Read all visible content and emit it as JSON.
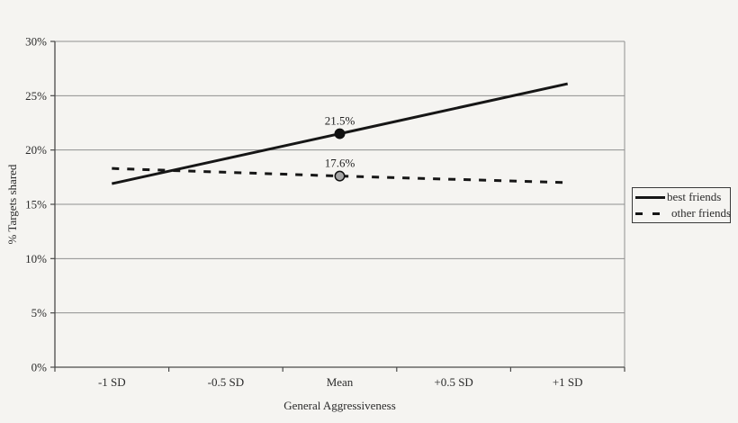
{
  "chart_data": {
    "type": "line",
    "title": "",
    "xlabel": "General Aggressiveness",
    "ylabel": "% Targets shared",
    "categories": [
      "-1 SD",
      "-0.5 SD",
      "Mean",
      "+0.5 SD",
      "+1 SD"
    ],
    "series": [
      {
        "name": "best friends",
        "line_style": "solid",
        "values": [
          16.9,
          19.2,
          21.5,
          23.8,
          26.1
        ],
        "marker": {
          "index": 2,
          "category": "Mean",
          "fill": "#111111",
          "outline": "#111111"
        },
        "point_label": {
          "index": 2,
          "text": "21.5%"
        }
      },
      {
        "name": "other friends",
        "line_style": "dashed",
        "values": [
          18.3,
          17.95,
          17.6,
          17.3,
          17.0
        ],
        "marker": {
          "index": 2,
          "category": "Mean",
          "fill": "#a6a6a6",
          "outline": "#111111"
        },
        "point_label": {
          "index": 2,
          "text": "17.6%"
        }
      }
    ],
    "ylim": [
      0,
      30
    ],
    "yticks": [
      0,
      5,
      10,
      15,
      20,
      25,
      30
    ],
    "ytick_labels": [
      "0%",
      "5%",
      "10%",
      "15%",
      "20%",
      "25%",
      "30%"
    ],
    "grid": true,
    "legend_position": "right-middle"
  },
  "colors": {
    "background": "#f5f4f1",
    "series_line": "#161616",
    "grid": "#8f8f8f",
    "axis": "#4a4a4a",
    "text": "#2b2b2b",
    "point_label_text": "#1f1f1f"
  }
}
